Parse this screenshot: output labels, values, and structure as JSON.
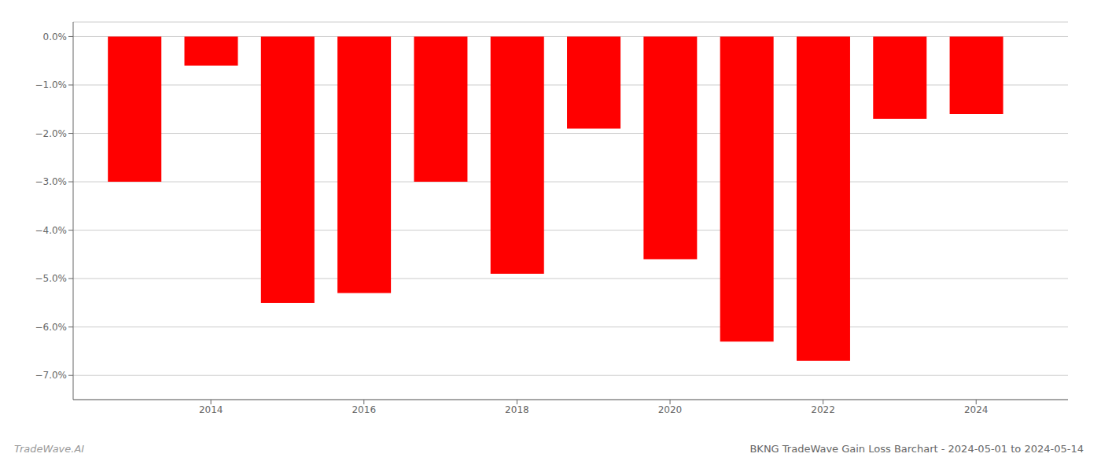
{
  "chart_data": {
    "type": "bar",
    "title": "BKNG TradeWave Gain Loss Barchart - 2024-05-01 to 2024-05-14",
    "annotations": [
      "TradeWave.AI"
    ],
    "x": [
      2013,
      2014,
      2015,
      2016,
      2017,
      2018,
      2019,
      2020,
      2021,
      2022,
      2023,
      2024
    ],
    "values": [
      -3.0,
      -0.6,
      -5.5,
      -5.3,
      -3.0,
      -4.9,
      -1.9,
      -4.6,
      -6.3,
      -6.7,
      -1.7,
      -1.6
    ],
    "color": "#ff0000",
    "xlim": [
      2012.2,
      2025.2
    ],
    "xticks": [
      2014,
      2016,
      2018,
      2020,
      2022,
      2024
    ],
    "ylim": [
      -7.5,
      0.3
    ],
    "yticks": [
      {
        "value": 0.0,
        "label": "0.0%"
      },
      {
        "value": -1.0,
        "label": "−1.0%"
      },
      {
        "value": -2.0,
        "label": "−2.0%"
      },
      {
        "value": -3.0,
        "label": "−3.0%"
      },
      {
        "value": -4.0,
        "label": "−4.0%"
      },
      {
        "value": -5.0,
        "label": "−5.0%"
      },
      {
        "value": -6.0,
        "label": "−6.0%"
      },
      {
        "value": -7.0,
        "label": "−7.0%"
      }
    ],
    "grid": true
  }
}
